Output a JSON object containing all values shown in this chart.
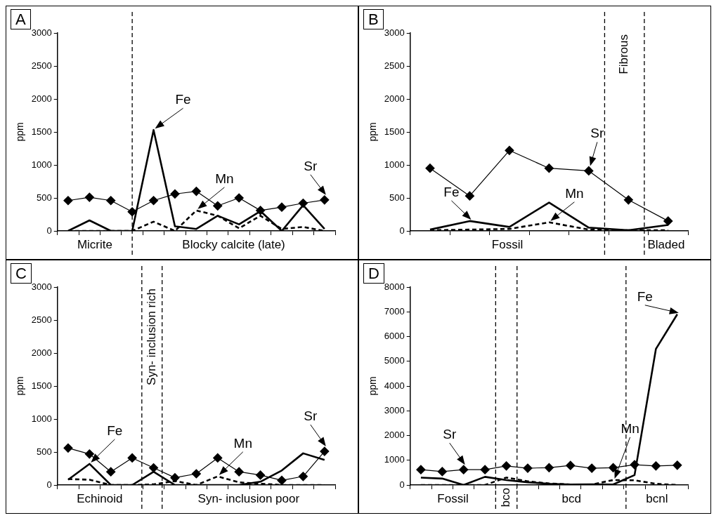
{
  "chart_data": [
    {
      "type": "line",
      "title": "A",
      "ylabel": "ppm",
      "categories": [
        null,
        null,
        null,
        null,
        null,
        null,
        null,
        null,
        null,
        null,
        null,
        null,
        null
      ],
      "ylim": [
        0,
        3000
      ],
      "yticks": [
        0,
        500,
        1000,
        1500,
        2000,
        2500,
        3000
      ],
      "tick_labels": "y",
      "grid": false,
      "legend": false,
      "series": [
        {
          "name": "Sr",
          "color": "#000000",
          "marker": "diamond",
          "line_style": "solid",
          "values": [
            460,
            510,
            460,
            290,
            460,
            560,
            600,
            380,
            500,
            310,
            360,
            420,
            470
          ]
        },
        {
          "name": "Fe",
          "color": "#000000",
          "marker": "none",
          "line_style": "solid",
          "values": [
            0,
            160,
            0,
            0,
            1530,
            70,
            30,
            230,
            100,
            300,
            0,
            390,
            30
          ]
        },
        {
          "name": "Mn",
          "color": "#000000",
          "marker": "none",
          "line_style": "dashed",
          "values": [
            0,
            0,
            0,
            0,
            140,
            0,
            310,
            230,
            40,
            230,
            30,
            60,
            0
          ]
        }
      ],
      "annotations": [
        "Micrite",
        "Blocky calcite (late)"
      ]
    },
    {
      "type": "line",
      "title": "B",
      "ylabel": "ppm",
      "categories": [
        null,
        null,
        null,
        null,
        null,
        null,
        null
      ],
      "ylim": [
        0,
        3000
      ],
      "yticks": [
        0,
        500,
        1000,
        1500,
        2000,
        2500,
        3000
      ],
      "tick_labels": "y",
      "grid": false,
      "legend": false,
      "series": [
        {
          "name": "Sr",
          "color": "#000000",
          "marker": "diamond",
          "line_style": "solid",
          "values": [
            950,
            530,
            1220,
            950,
            910,
            470,
            150
          ]
        },
        {
          "name": "Fe",
          "color": "#000000",
          "marker": "none",
          "line_style": "solid",
          "values": [
            20,
            150,
            60,
            430,
            50,
            10,
            90
          ]
        },
        {
          "name": "Mn",
          "color": "#000000",
          "marker": "none",
          "line_style": "dashed",
          "values": [
            10,
            20,
            30,
            130,
            20,
            10,
            10
          ]
        }
      ],
      "annotations": [
        "Fossil",
        "Fibrous",
        "Bladed"
      ]
    },
    {
      "type": "line",
      "title": "C",
      "ylabel": "ppm",
      "categories": [
        null,
        null,
        null,
        null,
        null,
        null,
        null,
        null,
        null,
        null,
        null,
        null,
        null
      ],
      "ylim": [
        0,
        3000
      ],
      "yticks": [
        0,
        500,
        1000,
        1500,
        2000,
        2500,
        3000
      ],
      "tick_labels": "y",
      "grid": false,
      "legend": false,
      "series": [
        {
          "name": "Sr",
          "color": "#000000",
          "marker": "diamond",
          "line_style": "solid",
          "values": [
            560,
            470,
            200,
            410,
            260,
            110,
            170,
            410,
            200,
            150,
            70,
            130,
            510
          ]
        },
        {
          "name": "Fe",
          "color": "#000000",
          "marker": "none",
          "line_style": "solid",
          "values": [
            80,
            320,
            0,
            0,
            200,
            0,
            0,
            0,
            0,
            50,
            220,
            480,
            380
          ]
        },
        {
          "name": "Mn",
          "color": "#000000",
          "marker": "none",
          "line_style": "dashed",
          "values": [
            90,
            80,
            0,
            0,
            10,
            60,
            0,
            130,
            40,
            20,
            0,
            0,
            0
          ]
        }
      ],
      "annotations": [
        "Echinoid",
        "Syn- inclusion rich",
        "Syn- inclusion poor"
      ]
    },
    {
      "type": "line",
      "title": "D",
      "ylabel": "ppm",
      "categories": [
        null,
        null,
        null,
        null,
        null,
        null,
        null,
        null,
        null,
        null,
        null,
        null,
        null
      ],
      "ylim": [
        0,
        8000
      ],
      "yticks": [
        0,
        1000,
        2000,
        3000,
        4000,
        5000,
        6000,
        7000,
        8000
      ],
      "tick_labels": "y",
      "grid": false,
      "legend": false,
      "series": [
        {
          "name": "Sr",
          "color": "#000000",
          "marker": "diamond",
          "line_style": "solid",
          "values": [
            620,
            540,
            620,
            620,
            770,
            680,
            700,
            790,
            680,
            700,
            820,
            770,
            800
          ]
        },
        {
          "name": "Fe",
          "color": "#000000",
          "marker": "none",
          "line_style": "solid",
          "values": [
            300,
            260,
            0,
            330,
            200,
            110,
            50,
            20,
            30,
            20,
            400,
            5500,
            6900
          ]
        },
        {
          "name": "Mn",
          "color": "#000000",
          "marker": "none",
          "line_style": "dashed",
          "values": [
            0,
            0,
            0,
            0,
            300,
            150,
            60,
            20,
            20,
            200,
            190,
            50,
            0
          ]
        }
      ],
      "annotations": [
        "Fossil",
        "bco",
        "bcd",
        "bcnl"
      ]
    }
  ]
}
